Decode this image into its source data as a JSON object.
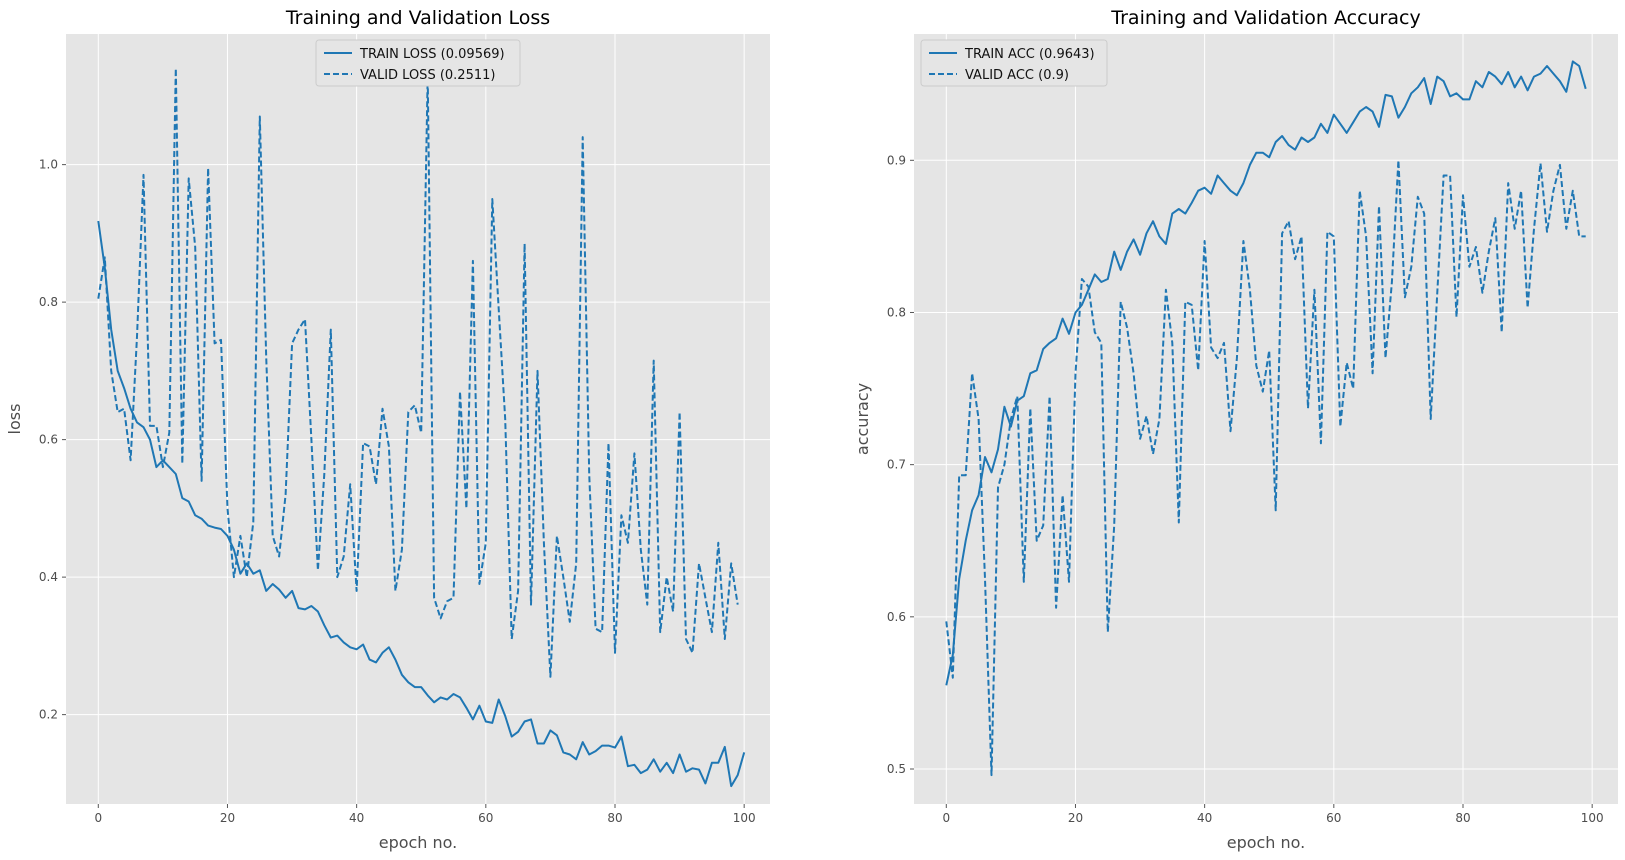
{
  "colors": {
    "series": "#1f77b4",
    "background": "#e5e5e5",
    "grid": "#ffffff"
  },
  "chart_data": [
    {
      "type": "line",
      "title": "Training and Validation Loss",
      "xlabel": "epoch no.",
      "ylabel": "loss",
      "xlim": [
        -5,
        104
      ],
      "ylim": [
        0.07,
        1.19
      ],
      "xticks": [
        0,
        20,
        40,
        60,
        80,
        100
      ],
      "yticks": [
        0.2,
        0.4,
        0.6,
        0.8,
        1.0
      ],
      "xtick_labels": [
        "0",
        "20",
        "40",
        "60",
        "80",
        "100"
      ],
      "ytick_labels": [
        "0.2",
        "0.4",
        "0.6",
        "0.8",
        "1.0"
      ],
      "grid": true,
      "legend_position": "top-center",
      "series": [
        {
          "name": "TRAIN LOSS (0.09569)",
          "style": "solid",
          "values": [
            0.918,
            0.85,
            0.76,
            0.7,
            0.675,
            0.645,
            0.625,
            0.618,
            0.6,
            0.56,
            0.57,
            0.56,
            0.55,
            0.515,
            0.51,
            0.49,
            0.485,
            0.475,
            0.472,
            0.47,
            0.46,
            0.44,
            0.405,
            0.42,
            0.405,
            0.41,
            0.38,
            0.39,
            0.382,
            0.37,
            0.38,
            0.355,
            0.353,
            0.358,
            0.35,
            0.33,
            0.312,
            0.315,
            0.305,
            0.298,
            0.295,
            0.302,
            0.28,
            0.276,
            0.29,
            0.298,
            0.28,
            0.258,
            0.247,
            0.24,
            0.24,
            0.228,
            0.218,
            0.225,
            0.222,
            0.23,
            0.225,
            0.21,
            0.193,
            0.213,
            0.19,
            0.188,
            0.222,
            0.198,
            0.168,
            0.175,
            0.19,
            0.193,
            0.158,
            0.158,
            0.177,
            0.17,
            0.145,
            0.142,
            0.135,
            0.16,
            0.142,
            0.147,
            0.155,
            0.155,
            0.152,
            0.168,
            0.125,
            0.127,
            0.115,
            0.12,
            0.135,
            0.117,
            0.13,
            0.115,
            0.142,
            0.117,
            0.122,
            0.12,
            0.1,
            0.13,
            0.13,
            0.153,
            0.096,
            0.112,
            0.145
          ]
        },
        {
          "name": "VALID LOSS (0.2511)",
          "style": "dashed",
          "values": [
            0.805,
            0.865,
            0.7,
            0.64,
            0.645,
            0.57,
            0.75,
            0.985,
            0.62,
            0.62,
            0.56,
            0.61,
            1.14,
            0.565,
            0.98,
            0.88,
            0.54,
            0.995,
            0.74,
            0.745,
            0.5,
            0.4,
            0.46,
            0.4,
            0.48,
            1.07,
            0.72,
            0.46,
            0.43,
            0.52,
            0.74,
            0.76,
            0.775,
            0.6,
            0.41,
            0.55,
            0.76,
            0.4,
            0.43,
            0.535,
            0.38,
            0.595,
            0.59,
            0.535,
            0.645,
            0.59,
            0.38,
            0.44,
            0.64,
            0.65,
            0.61,
            1.13,
            0.37,
            0.34,
            0.365,
            0.37,
            0.67,
            0.5,
            0.86,
            0.39,
            0.45,
            0.95,
            0.79,
            0.63,
            0.31,
            0.38,
            0.885,
            0.36,
            0.7,
            0.45,
            0.255,
            0.46,
            0.4,
            0.335,
            0.42,
            1.04,
            0.55,
            0.325,
            0.32,
            0.595,
            0.29,
            0.49,
            0.45,
            0.58,
            0.44,
            0.36,
            0.715,
            0.32,
            0.4,
            0.35,
            0.64,
            0.31,
            0.29,
            0.42,
            0.37,
            0.32,
            0.45,
            0.31,
            0.42,
            0.36
          ]
        }
      ]
    },
    {
      "type": "line",
      "title": "Training and Validation Accuracy",
      "xlabel": "epoch no.",
      "ylabel": "accuracy",
      "xlim": [
        -5,
        104
      ],
      "ylim": [
        0.477,
        0.983
      ],
      "xticks": [
        0,
        20,
        40,
        60,
        80,
        100
      ],
      "yticks": [
        0.5,
        0.6,
        0.7,
        0.8,
        0.9
      ],
      "xtick_labels": [
        "0",
        "20",
        "40",
        "60",
        "80",
        "100"
      ],
      "ytick_labels": [
        "0.5",
        "0.6",
        "0.7",
        "0.8",
        "0.9"
      ],
      "grid": true,
      "legend_position": "top-left",
      "series": [
        {
          "name": "TRAIN ACC (0.9643)",
          "style": "solid",
          "values": [
            0.555,
            0.575,
            0.625,
            0.65,
            0.67,
            0.68,
            0.705,
            0.695,
            0.71,
            0.738,
            0.725,
            0.742,
            0.745,
            0.76,
            0.762,
            0.776,
            0.78,
            0.783,
            0.796,
            0.786,
            0.8,
            0.805,
            0.815,
            0.825,
            0.82,
            0.822,
            0.84,
            0.828,
            0.84,
            0.848,
            0.838,
            0.852,
            0.86,
            0.85,
            0.845,
            0.865,
            0.868,
            0.865,
            0.872,
            0.88,
            0.882,
            0.878,
            0.89,
            0.885,
            0.88,
            0.877,
            0.885,
            0.897,
            0.905,
            0.905,
            0.902,
            0.912,
            0.916,
            0.91,
            0.907,
            0.915,
            0.912,
            0.915,
            0.924,
            0.918,
            0.93,
            0.924,
            0.918,
            0.925,
            0.932,
            0.935,
            0.932,
            0.922,
            0.943,
            0.942,
            0.928,
            0.935,
            0.944,
            0.948,
            0.954,
            0.937,
            0.955,
            0.952,
            0.942,
            0.944,
            0.94,
            0.94,
            0.952,
            0.948,
            0.958,
            0.955,
            0.95,
            0.958,
            0.948,
            0.955,
            0.946,
            0.955,
            0.957,
            0.962,
            0.957,
            0.952,
            0.945,
            0.965,
            0.962,
            0.947
          ]
        },
        {
          "name": "VALID ACC (0.9)",
          "style": "dashed",
          "values": [
            0.597,
            0.56,
            0.693,
            0.693,
            0.76,
            0.73,
            0.625,
            0.496,
            0.685,
            0.7,
            0.73,
            0.745,
            0.623,
            0.737,
            0.65,
            0.66,
            0.745,
            0.606,
            0.68,
            0.623,
            0.76,
            0.822,
            0.817,
            0.787,
            0.78,
            0.59,
            0.66,
            0.807,
            0.79,
            0.76,
            0.717,
            0.732,
            0.707,
            0.73,
            0.815,
            0.78,
            0.662,
            0.807,
            0.805,
            0.762,
            0.847,
            0.777,
            0.77,
            0.78,
            0.722,
            0.77,
            0.847,
            0.815,
            0.765,
            0.748,
            0.775,
            0.67,
            0.852,
            0.86,
            0.835,
            0.85,
            0.737,
            0.815,
            0.714,
            0.853,
            0.85,
            0.725,
            0.767,
            0.75,
            0.88,
            0.85,
            0.76,
            0.87,
            0.77,
            0.82,
            0.9,
            0.81,
            0.83,
            0.876,
            0.865,
            0.73,
            0.812,
            0.89,
            0.89,
            0.797,
            0.877,
            0.83,
            0.843,
            0.813,
            0.84,
            0.862,
            0.787,
            0.885,
            0.855,
            0.88,
            0.803,
            0.855,
            0.898,
            0.853,
            0.88,
            0.897,
            0.855,
            0.88,
            0.85,
            0.85
          ]
        }
      ]
    }
  ]
}
